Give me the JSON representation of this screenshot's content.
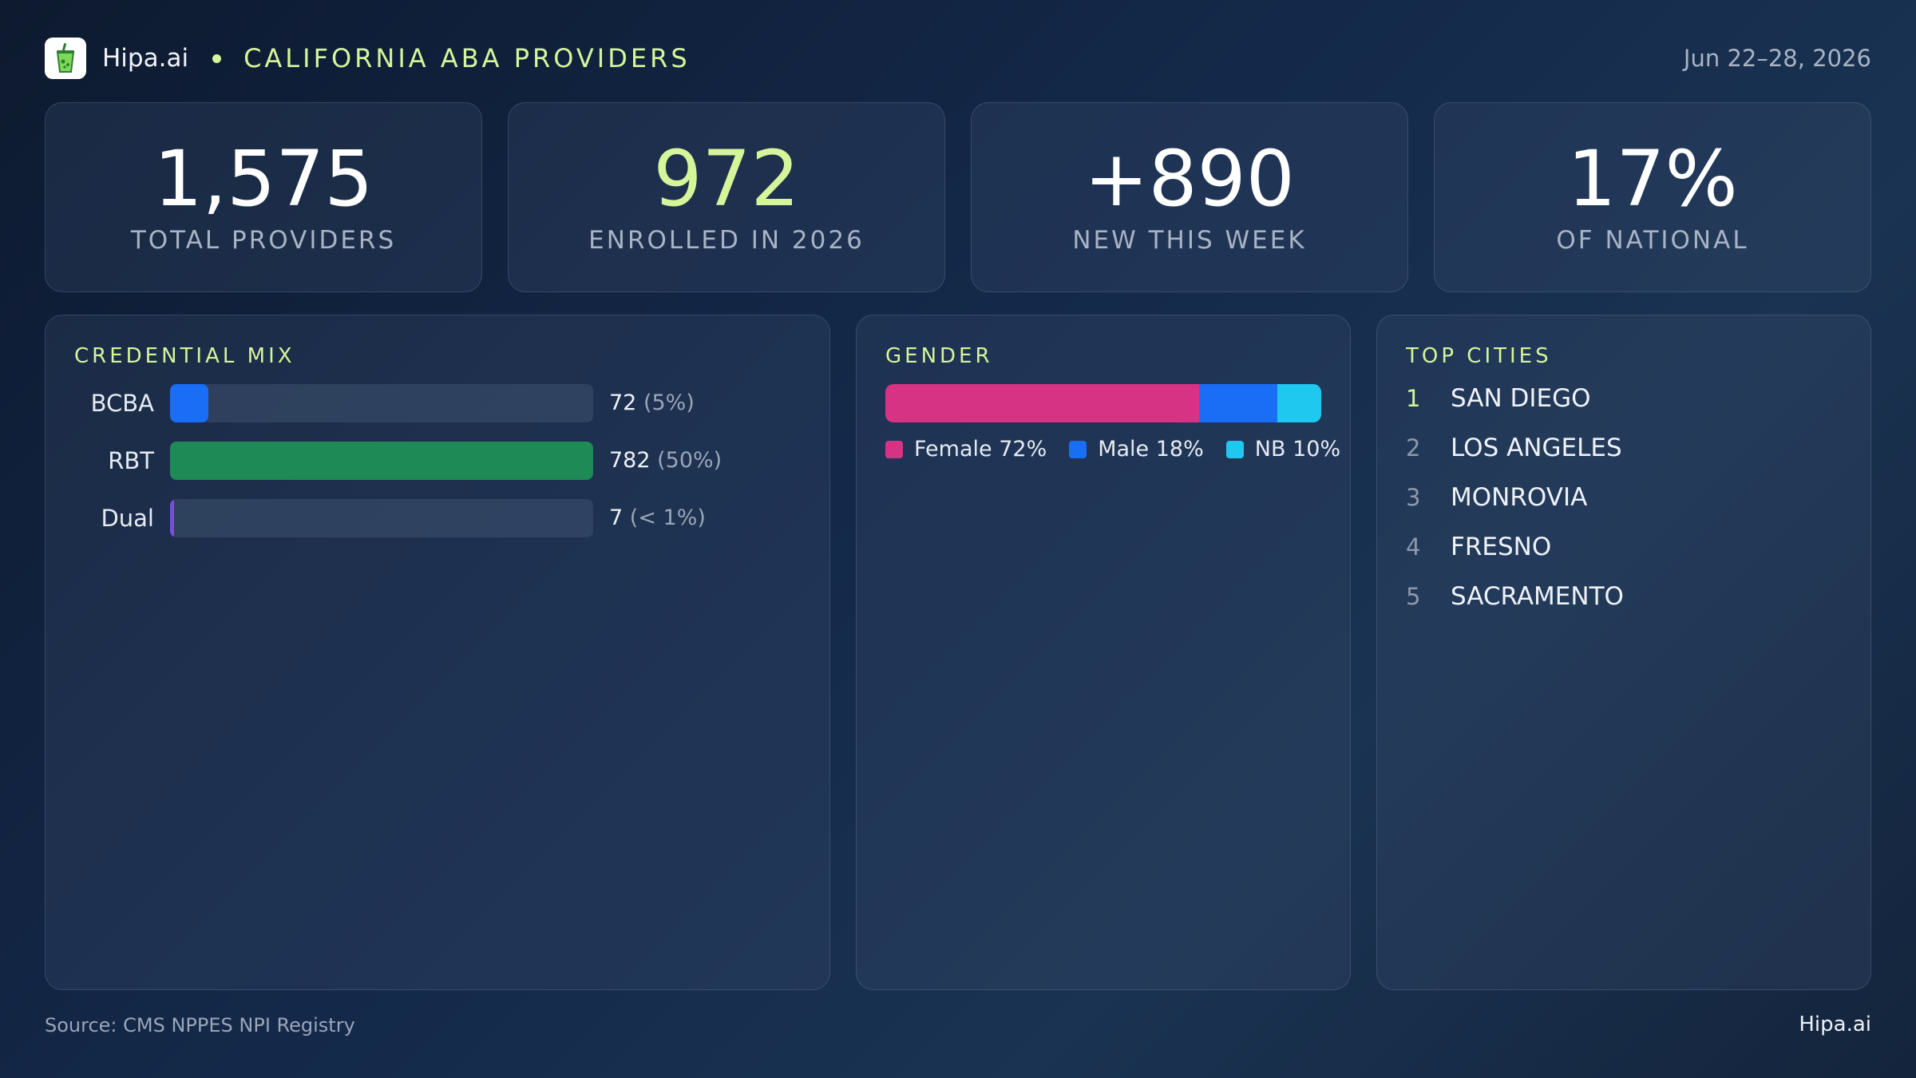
{
  "header": {
    "brand": "Hipa.ai",
    "title": "CALIFORNIA ABA PROVIDERS",
    "date_range": "Jun 22–28, 2026",
    "icon": "cup-icon"
  },
  "stats": [
    {
      "value": "1,575",
      "label": "TOTAL PROVIDERS"
    },
    {
      "value": "972",
      "label": "ENROLLED IN 2026"
    },
    {
      "value": "+890",
      "label": "NEW THIS WEEK"
    },
    {
      "value": "17%",
      "label": "OF NATIONAL"
    }
  ],
  "credential_mix": {
    "title": "CREDENTIAL MIX",
    "rows": [
      {
        "label": "BCBA",
        "count": "72",
        "pct": "(5%)",
        "fraction": 0.09,
        "color": "#1a6ef5"
      },
      {
        "label": "RBT",
        "count": "782",
        "pct": "(50%)",
        "fraction": 1.0,
        "color": "#1e8a55"
      },
      {
        "label": "Dual",
        "count": "7",
        "pct": "(< 1%)",
        "fraction": 0.01,
        "color": "#7a4fd8"
      }
    ]
  },
  "gender": {
    "title": "GENDER",
    "segments": [
      {
        "label": "Female 72%",
        "fraction": 0.72,
        "color": "#d63384"
      },
      {
        "label": "Male 18%",
        "fraction": 0.18,
        "color": "#1a6ef5"
      },
      {
        "label": "NB 10%",
        "fraction": 0.1,
        "color": "#1ec8ee"
      }
    ]
  },
  "top_cities": {
    "title": "TOP CITIES",
    "items": [
      {
        "rank": "1",
        "name": "SAN DIEGO"
      },
      {
        "rank": "2",
        "name": "LOS ANGELES"
      },
      {
        "rank": "3",
        "name": "MONROVIA"
      },
      {
        "rank": "4",
        "name": "FRESNO"
      },
      {
        "rank": "5",
        "name": "SACRAMENTO"
      }
    ]
  },
  "footer": {
    "source": "Source: CMS NPPES NPI Registry",
    "brand": "Hipa.ai"
  }
}
